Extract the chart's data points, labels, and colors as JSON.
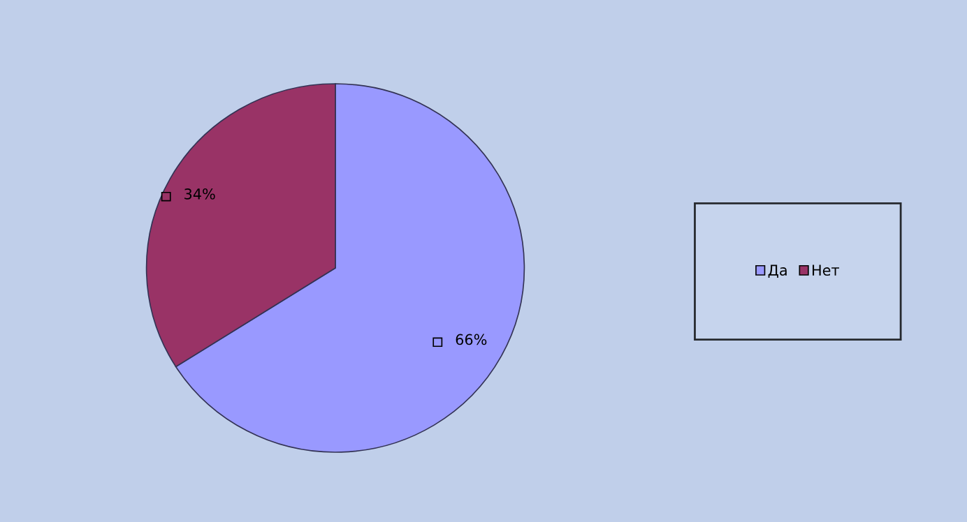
{
  "chart_data": {
    "type": "pie",
    "categories": [
      "Да",
      "Нет"
    ],
    "values": [
      66,
      34
    ],
    "colors": [
      "#9999ff",
      "#993366"
    ],
    "value_labels": [
      "66%",
      "34%"
    ],
    "legend": "right"
  }
}
